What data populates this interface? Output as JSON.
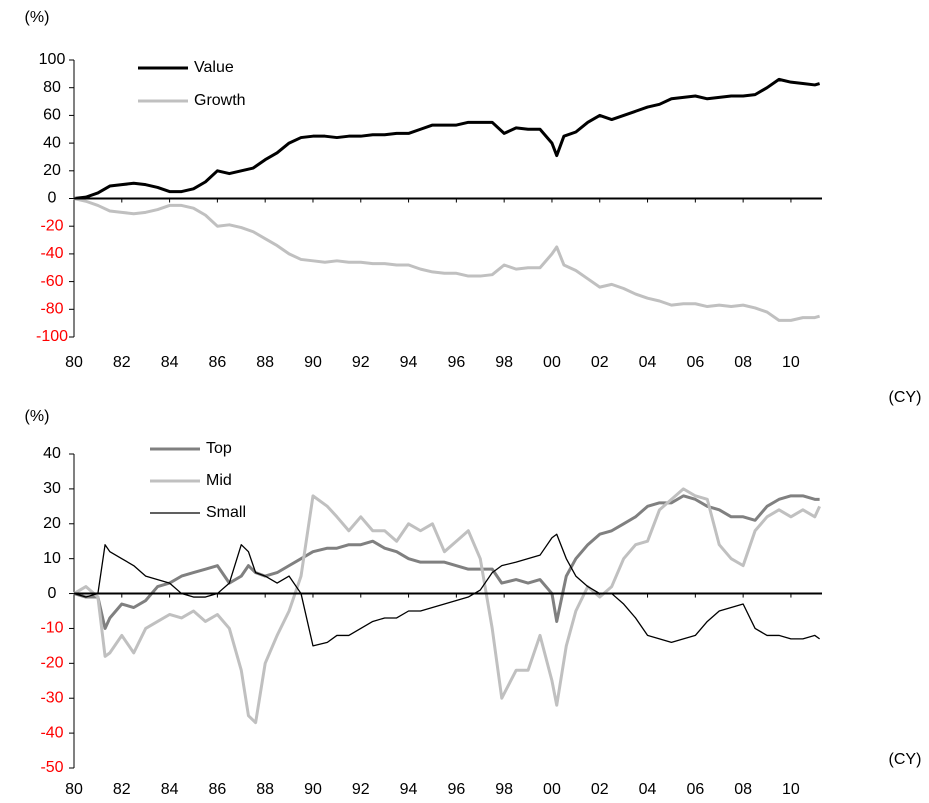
{
  "chart_data": [
    {
      "type": "line",
      "y_unit_label": "(%)",
      "x_unit_label": "(CY)",
      "x": [
        1980,
        1980.5,
        1981,
        1981.5,
        1982,
        1982.5,
        1983,
        1983.5,
        1984,
        1984.5,
        1985,
        1985.5,
        1986,
        1986.5,
        1987,
        1987.5,
        1988,
        1988.5,
        1989,
        1989.5,
        1990,
        1990.5,
        1991,
        1991.5,
        1992,
        1992.5,
        1993,
        1993.5,
        1994,
        1994.5,
        1995,
        1995.5,
        1996,
        1996.5,
        1997,
        1997.5,
        1998,
        1998.5,
        1999,
        1999.5,
        2000,
        2000.2,
        2000.5,
        2001,
        2001.5,
        2002,
        2002.5,
        2003,
        2003.5,
        2004,
        2004.5,
        2005,
        2005.5,
        2006,
        2006.5,
        2007,
        2007.5,
        2008,
        2008.5,
        2009,
        2009.5,
        2010,
        2010.5,
        2011,
        2011.2
      ],
      "xlim": [
        1980,
        2011.3
      ],
      "xticks": [
        {
          "value": 1980,
          "label": "80"
        },
        {
          "value": 1982,
          "label": "82"
        },
        {
          "value": 1984,
          "label": "84"
        },
        {
          "value": 1986,
          "label": "86"
        },
        {
          "value": 1988,
          "label": "88"
        },
        {
          "value": 1990,
          "label": "90"
        },
        {
          "value": 1992,
          "label": "92"
        },
        {
          "value": 1994,
          "label": "94"
        },
        {
          "value": 1996,
          "label": "96"
        },
        {
          "value": 1998,
          "label": "98"
        },
        {
          "value": 2000,
          "label": "00"
        },
        {
          "value": 2002,
          "label": "02"
        },
        {
          "value": 2004,
          "label": "04"
        },
        {
          "value": 2006,
          "label": "06"
        },
        {
          "value": 2008,
          "label": "08"
        },
        {
          "value": 2010,
          "label": "10"
        }
      ],
      "ylim": [
        -100,
        100
      ],
      "yticks": [
        -100,
        -80,
        -60,
        -40,
        -20,
        0,
        20,
        40,
        60,
        80,
        100
      ],
      "negative_tick_color": "#ff0000",
      "legend": "upper left",
      "series": [
        {
          "name": "Value",
          "color": "#000000",
          "width": 3,
          "values": [
            0,
            1,
            4,
            9,
            10,
            11,
            10,
            8,
            5,
            5,
            7,
            12,
            20,
            18,
            20,
            22,
            28,
            33,
            40,
            44,
            45,
            45,
            44,
            45,
            45,
            46,
            46,
            47,
            47,
            50,
            53,
            53,
            53,
            55,
            55,
            55,
            47,
            51,
            50,
            50,
            40,
            31,
            45,
            48,
            55,
            60,
            57,
            60,
            63,
            66,
            68,
            72,
            73,
            74,
            72,
            73,
            74,
            74,
            75,
            80,
            86,
            84,
            83,
            82,
            83
          ]
        },
        {
          "name": "Growth",
          "color": "#c0c0c0",
          "width": 3,
          "values": [
            0,
            -2,
            -5,
            -9,
            -10,
            -11,
            -10,
            -8,
            -5,
            -5,
            -7,
            -12,
            -20,
            -19,
            -21,
            -24,
            -29,
            -34,
            -40,
            -44,
            -45,
            -46,
            -45,
            -46,
            -46,
            -47,
            -47,
            -48,
            -48,
            -51,
            -53,
            -54,
            -54,
            -56,
            -56,
            -55,
            -48,
            -51,
            -50,
            -50,
            -40,
            -35,
            -48,
            -52,
            -58,
            -64,
            -62,
            -65,
            -69,
            -72,
            -74,
            -77,
            -76,
            -76,
            -78,
            -77,
            -78,
            -77,
            -79,
            -82,
            -88,
            -88,
            -86,
            -86,
            -85
          ]
        }
      ]
    },
    {
      "type": "line",
      "y_unit_label": "(%)",
      "x_unit_label": "(CY)",
      "x": [
        1980,
        1980.5,
        1981,
        1981.3,
        1981.5,
        1982,
        1982.5,
        1983,
        1983.5,
        1984,
        1984.5,
        1985,
        1985.5,
        1986,
        1986.5,
        1987,
        1987.3,
        1987.6,
        1988,
        1988.5,
        1989,
        1989.5,
        1990,
        1990.6,
        1991,
        1991.5,
        1992,
        1992.5,
        1993,
        1993.5,
        1994,
        1994.5,
        1995,
        1995.5,
        1996,
        1996.5,
        1997,
        1997.5,
        1997.9,
        1998.5,
        1999,
        1999.5,
        2000,
        2000.2,
        2000.6,
        2001,
        2001.5,
        2002,
        2002.5,
        2003,
        2003.5,
        2004,
        2004.5,
        2005,
        2005.5,
        2006,
        2006.5,
        2007,
        2007.5,
        2008,
        2008.5,
        2009,
        2009.5,
        2010,
        2010.5,
        2011,
        2011.2
      ],
      "xlim": [
        1980,
        2011.3
      ],
      "xticks": [
        {
          "value": 1980,
          "label": "80"
        },
        {
          "value": 1982,
          "label": "82"
        },
        {
          "value": 1984,
          "label": "84"
        },
        {
          "value": 1986,
          "label": "86"
        },
        {
          "value": 1988,
          "label": "88"
        },
        {
          "value": 1990,
          "label": "90"
        },
        {
          "value": 1992,
          "label": "92"
        },
        {
          "value": 1994,
          "label": "94"
        },
        {
          "value": 1996,
          "label": "96"
        },
        {
          "value": 1998,
          "label": "98"
        },
        {
          "value": 2000,
          "label": "00"
        },
        {
          "value": 2002,
          "label": "02"
        },
        {
          "value": 2004,
          "label": "04"
        },
        {
          "value": 2006,
          "label": "06"
        },
        {
          "value": 2008,
          "label": "08"
        },
        {
          "value": 2010,
          "label": "10"
        }
      ],
      "ylim": [
        -50,
        40
      ],
      "yticks": [
        -50,
        -40,
        -30,
        -20,
        -10,
        0,
        10,
        20,
        30,
        40
      ],
      "negative_tick_color": "#ff0000",
      "legend": "upper left",
      "series": [
        {
          "name": "Top",
          "color": "#808080",
          "width": 3,
          "values": [
            0,
            -1,
            -1,
            -10,
            -7,
            -3,
            -4,
            -2,
            2,
            3,
            5,
            6,
            7,
            8,
            3,
            5,
            8,
            6,
            5,
            6,
            8,
            10,
            12,
            13,
            13,
            14,
            14,
            15,
            13,
            12,
            10,
            9,
            9,
            9,
            8,
            7,
            7,
            7,
            3,
            4,
            3,
            4,
            0,
            -8,
            5,
            10,
            14,
            17,
            18,
            20,
            22,
            25,
            26,
            26,
            28,
            27,
            25,
            24,
            22,
            22,
            21,
            25,
            27,
            28,
            28,
            27,
            27
          ]
        },
        {
          "name": "Mid",
          "color": "#c0c0c0",
          "width": 3,
          "values": [
            0,
            2,
            -1,
            -18,
            -17,
            -12,
            -17,
            -10,
            -8,
            -6,
            -7,
            -5,
            -8,
            -6,
            -10,
            -22,
            -35,
            -37,
            -20,
            -12,
            -5,
            5,
            28,
            25,
            22,
            18,
            22,
            18,
            18,
            15,
            20,
            18,
            20,
            12,
            15,
            18,
            10,
            -10,
            -30,
            -22,
            -22,
            -12,
            -25,
            -32,
            -15,
            -5,
            2,
            -1,
            2,
            10,
            14,
            15,
            24,
            27,
            30,
            28,
            27,
            14,
            10,
            8,
            18,
            22,
            24,
            22,
            24,
            22,
            25
          ]
        },
        {
          "name": "Small",
          "color": "#000000",
          "width": 1.3,
          "values": [
            0,
            -1,
            0,
            14,
            12,
            10,
            8,
            5,
            4,
            3,
            0,
            -1,
            -1,
            0,
            3,
            14,
            12,
            6,
            5,
            3,
            5,
            0,
            -15,
            -14,
            -12,
            -12,
            -10,
            -8,
            -7,
            -7,
            -5,
            -5,
            -4,
            -3,
            -2,
            -1,
            1,
            6,
            8,
            9,
            10,
            11,
            16,
            17,
            10,
            5,
            2,
            0,
            0,
            -3,
            -7,
            -12,
            -13,
            -14,
            -13,
            -12,
            -8,
            -5,
            -4,
            -3,
            -10,
            -12,
            -12,
            -13,
            -13,
            -12,
            -13
          ]
        }
      ]
    }
  ]
}
